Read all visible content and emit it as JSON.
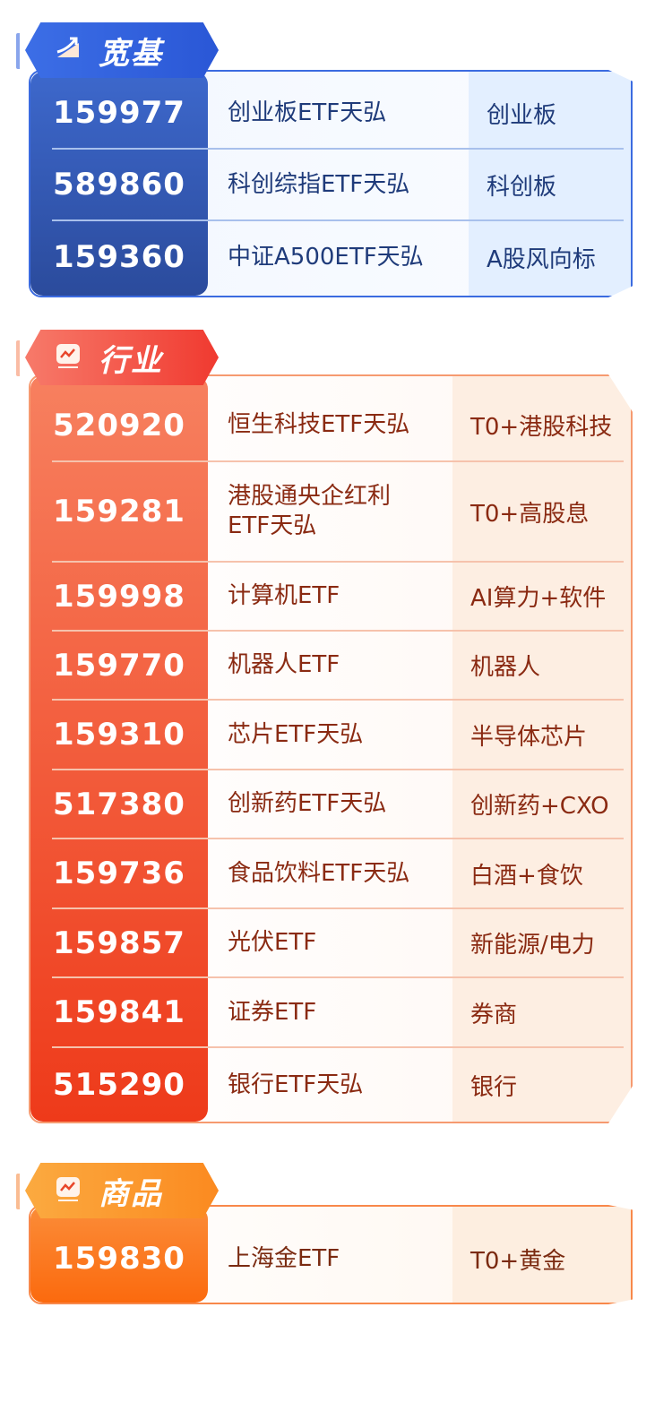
{
  "colors": {
    "broad": "#2f56b8",
    "industry": "#f04a28",
    "commodity": "#fb7a1e"
  },
  "sections": [
    {
      "id": "broad",
      "title": "宽基",
      "icon": "trend-up-icon",
      "rows": [
        {
          "code": "159977",
          "name": "创业板ETF天弘",
          "tag": "创业板"
        },
        {
          "code": "589860",
          "name": "科创综指ETF天弘",
          "tag": "科创板"
        },
        {
          "code": "159360",
          "name": "中证A500ETF天弘",
          "tag": "A股风向标"
        }
      ]
    },
    {
      "id": "industry",
      "title": "行业",
      "icon": "line-chart-icon",
      "rows": [
        {
          "code": "520920",
          "name": "恒生科技ETF天弘",
          "tag": "T0+港股科技"
        },
        {
          "code": "159281",
          "name": "港股通央企红利\nETF天弘",
          "tag": "T0+高股息"
        },
        {
          "code": "159998",
          "name": "计算机ETF",
          "tag": "AI算力+软件"
        },
        {
          "code": "159770",
          "name": "机器人ETF",
          "tag": "机器人"
        },
        {
          "code": "159310",
          "name": "芯片ETF天弘",
          "tag": "半导体芯片"
        },
        {
          "code": "517380",
          "name": "创新药ETF天弘",
          "tag": "创新药+CXO"
        },
        {
          "code": "159736",
          "name": "食品饮料ETF天弘",
          "tag": "白酒+食饮"
        },
        {
          "code": "159857",
          "name": "光伏ETF",
          "tag": "新能源/电力"
        },
        {
          "code": "159841",
          "name": "证券ETF",
          "tag": "券商"
        },
        {
          "code": "515290",
          "name": "银行ETF天弘",
          "tag": "银行"
        }
      ]
    },
    {
      "id": "commodity",
      "title": "商品",
      "icon": "line-chart-icon",
      "rows": [
        {
          "code": "159830",
          "name": "上海金ETF",
          "tag": "T0+黄金"
        }
      ]
    }
  ]
}
